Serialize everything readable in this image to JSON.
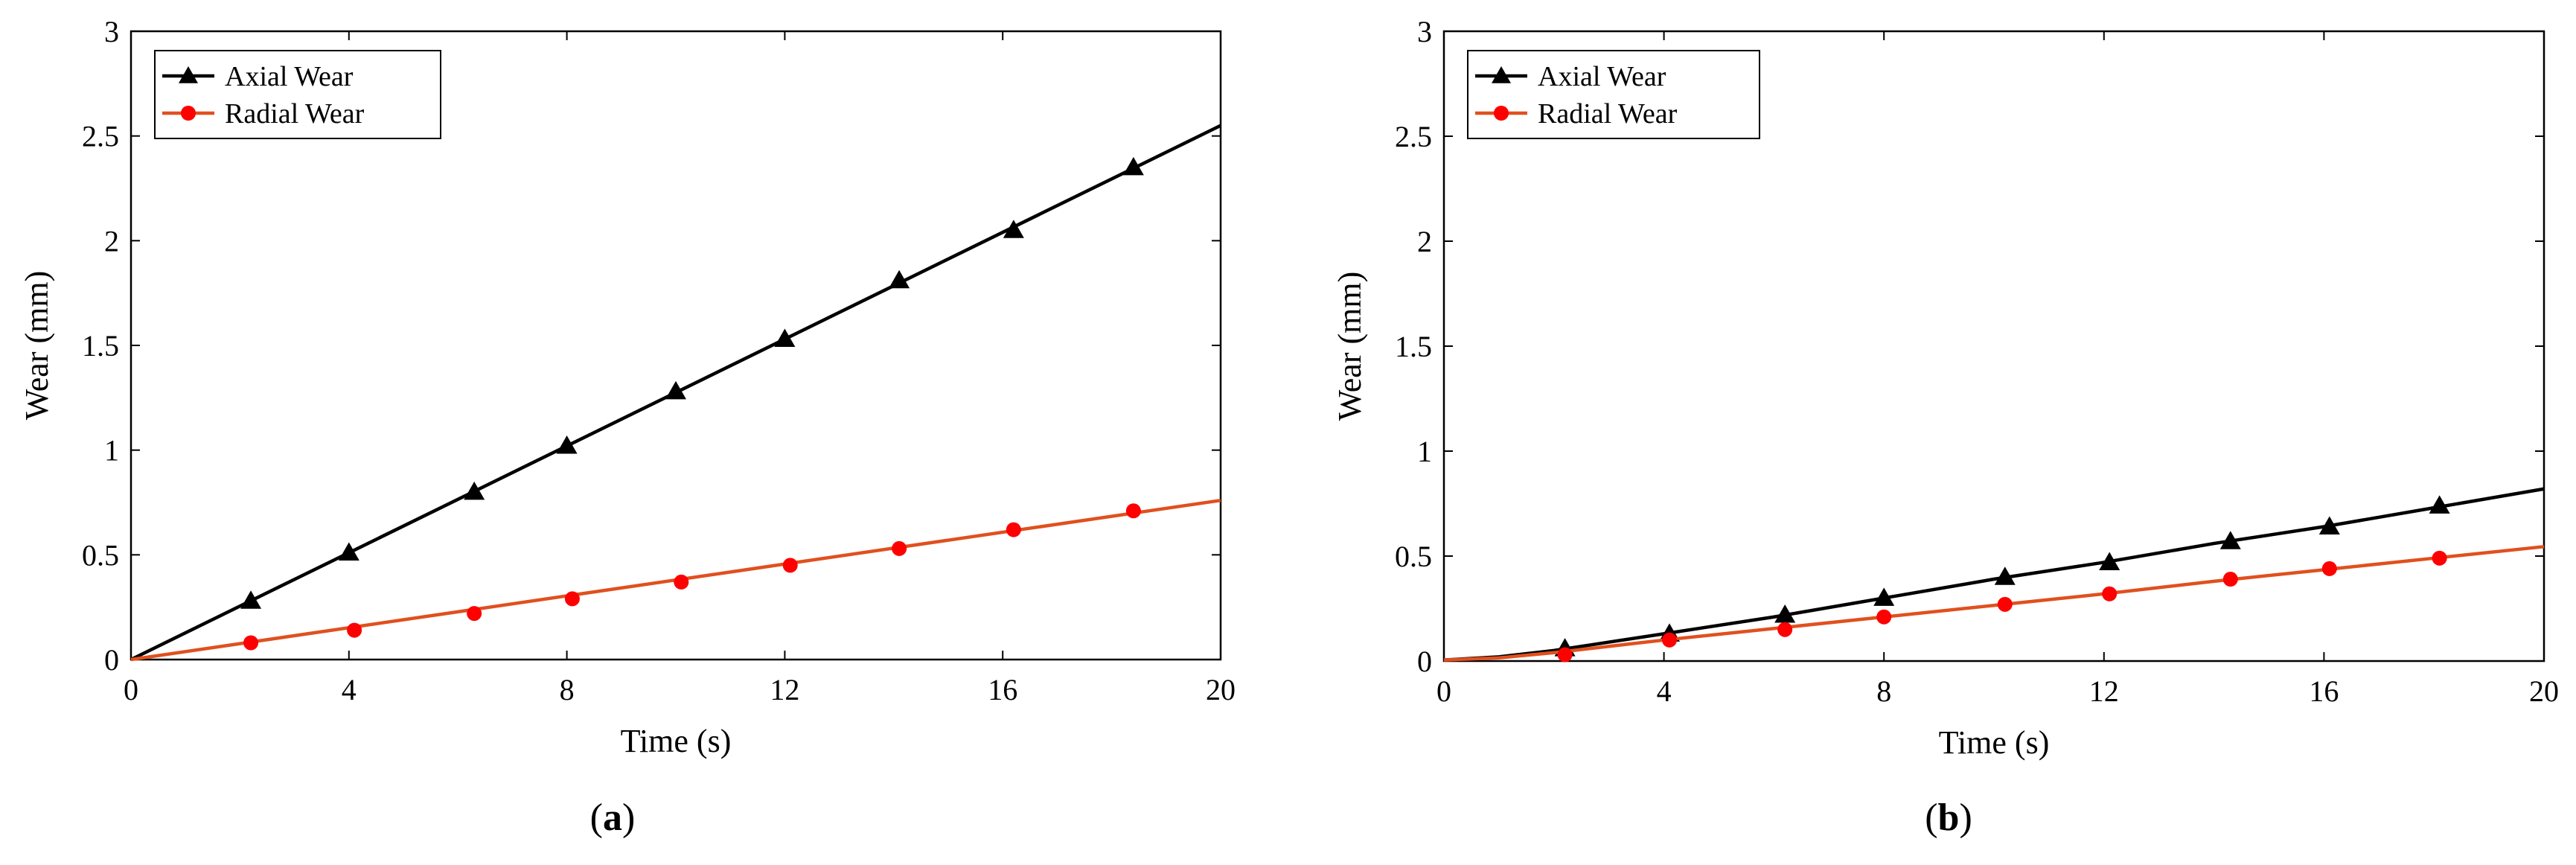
{
  "colors": {
    "axial": "#000000",
    "radial_line": "#e0501f",
    "radial_marker": "#ff0000",
    "axes": "#000000"
  },
  "chart_data": [
    {
      "type": "line",
      "panel_label": "a",
      "xlabel": "Time (s)",
      "ylabel": "Wear (mm)",
      "xlim": [
        0,
        20
      ],
      "ylim": [
        0,
        3
      ],
      "xticks": [
        0,
        4,
        8,
        12,
        16,
        20
      ],
      "xtick_labels": [
        "0",
        "4",
        "8",
        "12",
        "16",
        "20"
      ],
      "yticks": [
        0,
        0.5,
        1,
        1.5,
        2,
        2.5,
        3
      ],
      "ytick_labels": [
        "0",
        "0.5",
        "1",
        "1.5",
        "2",
        "2.5",
        "3"
      ],
      "grid": false,
      "legend_position": "top-left",
      "series": [
        {
          "name": "Axial Wear",
          "marker": "triangle",
          "x": [
            0,
            20
          ],
          "y": [
            0,
            2.55
          ],
          "markers_x": [
            2.2,
            4.0,
            6.3,
            8.0,
            10.0,
            12.0,
            14.1,
            16.2,
            18.4
          ],
          "markers_y": [
            0.28,
            0.51,
            0.8,
            1.02,
            1.28,
            1.53,
            1.81,
            2.05,
            2.35
          ]
        },
        {
          "name": "Radial Wear",
          "marker": "circle",
          "x": [
            0,
            20
          ],
          "y": [
            0,
            0.76
          ],
          "markers_x": [
            2.2,
            4.1,
            6.3,
            8.1,
            10.1,
            12.1,
            14.1,
            16.2,
            18.4
          ],
          "markers_y": [
            0.08,
            0.14,
            0.22,
            0.29,
            0.37,
            0.45,
            0.53,
            0.62,
            0.71
          ]
        }
      ]
    },
    {
      "type": "line",
      "panel_label": "b",
      "xlabel": "Time (s)",
      "ylabel": "Wear (mm)",
      "xlim": [
        0,
        20
      ],
      "ylim": [
        0,
        3
      ],
      "xticks": [
        0,
        4,
        8,
        12,
        16,
        20
      ],
      "xtick_labels": [
        "0",
        "4",
        "8",
        "12",
        "16",
        "20"
      ],
      "yticks": [
        0,
        0.5,
        1,
        1.5,
        2,
        2.5,
        3
      ],
      "ytick_labels": [
        "0",
        "0.5",
        "1",
        "1.5",
        "2",
        "2.5",
        "3"
      ],
      "grid": false,
      "legend_position": "top-left",
      "series": [
        {
          "name": "Axial Wear",
          "marker": "triangle",
          "x": [
            0,
            1,
            2,
            4,
            6,
            8,
            10,
            12,
            14,
            16,
            18,
            20
          ],
          "y": [
            0.005,
            0.02,
            0.05,
            0.13,
            0.21,
            0.3,
            0.39,
            0.47,
            0.56,
            0.64,
            0.73,
            0.82
          ],
          "markers_x": [
            2.2,
            4.1,
            6.2,
            8.0,
            10.2,
            12.1,
            14.3,
            16.1,
            18.1
          ],
          "markers_y": [
            0.06,
            0.13,
            0.22,
            0.3,
            0.4,
            0.47,
            0.57,
            0.64,
            0.74
          ]
        },
        {
          "name": "Radial Wear",
          "marker": "circle",
          "x": [
            0,
            1,
            2,
            4,
            6,
            8,
            10,
            12,
            14,
            16,
            18,
            20
          ],
          "y": [
            0.005,
            0.015,
            0.04,
            0.1,
            0.155,
            0.21,
            0.265,
            0.32,
            0.38,
            0.435,
            0.49,
            0.545
          ],
          "markers_x": [
            2.2,
            4.1,
            6.2,
            8.0,
            10.2,
            12.1,
            14.3,
            16.1,
            18.1
          ],
          "markers_y": [
            0.03,
            0.1,
            0.15,
            0.21,
            0.27,
            0.32,
            0.39,
            0.44,
            0.49
          ]
        }
      ]
    }
  ]
}
